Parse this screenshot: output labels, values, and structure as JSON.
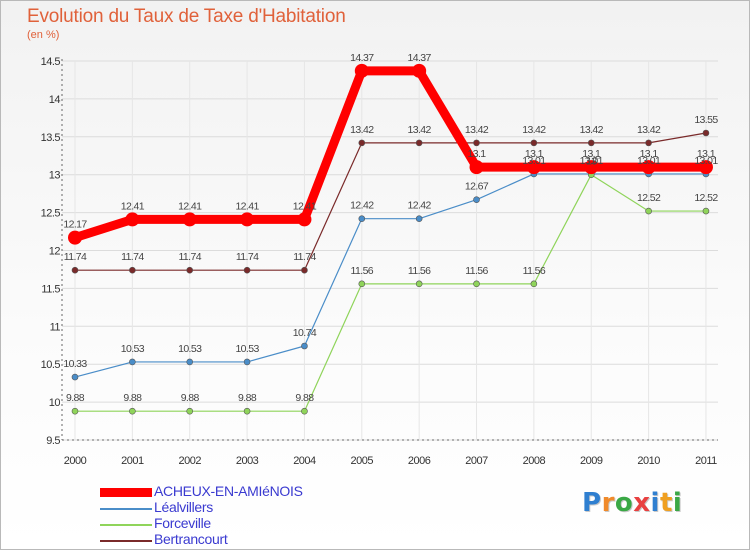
{
  "chart_data": {
    "type": "line",
    "title": "Evolution du Taux de Taxe d'Habitation",
    "subtitle": "(en %)",
    "categories": [
      "2000",
      "2001",
      "2002",
      "2003",
      "2004",
      "2005",
      "2006",
      "2007",
      "2008",
      "2009",
      "2010",
      "2011"
    ],
    "ylim": [
      9.5,
      14.5
    ],
    "yticks": [
      "9.5",
      "10",
      "10.5",
      "11",
      "11.5",
      "12",
      "12.5",
      "13",
      "13.5",
      "14",
      "14.5"
    ],
    "series": [
      {
        "name": "ACHEUX-EN-AMIéNOIS",
        "color": "#ff0000",
        "values": [
          12.17,
          12.41,
          12.41,
          12.41,
          12.41,
          14.37,
          14.37,
          13.1,
          13.1,
          13.1,
          13.1,
          13.1
        ],
        "labels": [
          "12.17",
          "12.41",
          "12.41",
          "12.41",
          "12.41",
          "14.37",
          "14.37",
          "13.1",
          "13.1",
          "13.1",
          "13.1",
          "13.1"
        ]
      },
      {
        "name": "Léalvillers",
        "color": "#4a8dc8",
        "values": [
          10.33,
          10.53,
          10.53,
          10.53,
          10.74,
          12.42,
          12.42,
          12.67,
          13.01,
          13.01,
          13.01,
          13.01
        ],
        "labels": [
          "10.33",
          "10.53",
          "10.53",
          "10.53",
          "10.74",
          "12.42",
          "12.42",
          "12.67",
          "13.01",
          "13.01",
          "13.01",
          "13.01"
        ]
      },
      {
        "name": "Forceville",
        "color": "#8fd45a",
        "values": [
          9.88,
          9.88,
          9.88,
          9.88,
          9.88,
          11.56,
          11.56,
          11.56,
          11.56,
          13.0,
          12.52,
          12.52
        ],
        "labels": [
          "9.88",
          "9.88",
          "9.88",
          "9.88",
          "9.88",
          "11.56",
          "11.56",
          "11.56",
          "11.56",
          "13",
          "12.52",
          "12.52"
        ]
      },
      {
        "name": "Bertrancourt",
        "color": "#7a2a2a",
        "values": [
          11.74,
          11.74,
          11.74,
          11.74,
          11.74,
          13.42,
          13.42,
          13.42,
          13.42,
          13.42,
          13.42,
          13.55
        ],
        "labels": [
          "11.74",
          "11.74",
          "11.74",
          "11.74",
          "11.74",
          "13.42",
          "13.42",
          "13.42",
          "13.42",
          "13.42",
          "13.42",
          "13.55"
        ]
      }
    ]
  },
  "legend": {
    "items": [
      "ACHEUX-EN-AMIéNOIS",
      "Léalvillers",
      "Forceville",
      "Bertrancourt"
    ]
  },
  "logo": {
    "letters": [
      "P",
      "r",
      "o",
      "x",
      "i",
      "t",
      "i"
    ],
    "colors": [
      "#2f7fd0",
      "#f08a2a",
      "#3aa845",
      "#e84040",
      "#2f7fd0",
      "#f0a020",
      "#3aa845"
    ]
  }
}
